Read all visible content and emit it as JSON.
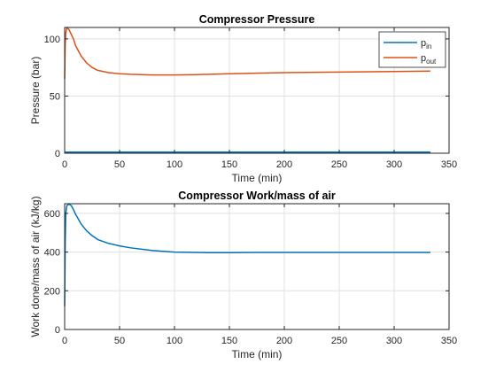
{
  "chart_data": [
    {
      "type": "line",
      "title": "Compressor Pressure",
      "xlabel": "Time (min)",
      "ylabel": "Pressure (bar)",
      "xlim": [
        0,
        350
      ],
      "ylim": [
        0,
        110
      ],
      "xticks": [
        "0",
        "50",
        "100",
        "150",
        "200",
        "250",
        "300",
        "350"
      ],
      "yticks": [
        "0",
        "50",
        "100"
      ],
      "grid": true,
      "legend": "top-right",
      "series": [
        {
          "name": "p_in",
          "legend_main": "p",
          "legend_sub": "in",
          "color": "#0072BD",
          "x": [
            0,
            50,
            100,
            150,
            200,
            250,
            300,
            333
          ],
          "y": [
            1,
            1,
            1,
            1,
            1,
            1,
            1,
            1
          ]
        },
        {
          "name": "p_out",
          "legend_main": "p",
          "legend_sub": "out",
          "color": "#D95319",
          "x": [
            0,
            0.5,
            1,
            2,
            4,
            6,
            8,
            10,
            15,
            20,
            25,
            30,
            40,
            50,
            60,
            80,
            100,
            120,
            150,
            175,
            200,
            250,
            300,
            333
          ],
          "y": [
            65,
            95,
            105,
            110,
            108,
            104,
            100,
            94,
            85,
            79,
            75,
            72.5,
            70.5,
            69.5,
            69,
            68.5,
            68.5,
            68.8,
            69.5,
            70,
            70.5,
            71,
            71.5,
            71.8
          ]
        }
      ]
    },
    {
      "type": "line",
      "title": "Compressor Work/mass of air",
      "xlabel": "Time (min)",
      "ylabel": "Work done/mass of air (kJ/kg)",
      "xlim": [
        0,
        350
      ],
      "ylim": [
        0,
        650
      ],
      "xticks": [
        "0",
        "50",
        "100",
        "150",
        "200",
        "250",
        "300",
        "350"
      ],
      "yticks": [
        "0",
        "200",
        "400",
        "600"
      ],
      "grid": true,
      "series": [
        {
          "color": "#0072BD",
          "x": [
            0,
            0.5,
            1,
            2,
            4,
            6,
            8,
            10,
            15,
            20,
            25,
            30,
            40,
            50,
            60,
            80,
            100,
            120,
            130,
            150,
            175,
            200,
            250,
            300,
            333
          ],
          "y": [
            120,
            450,
            600,
            640,
            648,
            640,
            620,
            595,
            545,
            510,
            485,
            465,
            445,
            432,
            422,
            408,
            400,
            398,
            397,
            397,
            398,
            398,
            398,
            398,
            398
          ]
        }
      ]
    }
  ]
}
